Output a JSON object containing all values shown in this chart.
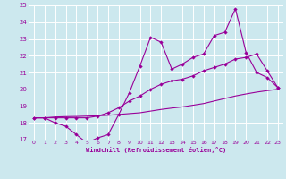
{
  "xlabel": "Windchill (Refroidissement éolien,°C)",
  "background_color": "#cce8ee",
  "grid_color": "#ffffff",
  "line_color": "#990099",
  "x_ticks": [
    0,
    1,
    2,
    3,
    4,
    5,
    6,
    7,
    8,
    9,
    10,
    11,
    12,
    13,
    14,
    15,
    16,
    17,
    18,
    19,
    20,
    21,
    22,
    23
  ],
  "xlim": [
    -0.5,
    23.5
  ],
  "ylim": [
    17,
    25
  ],
  "yticks": [
    17,
    18,
    19,
    20,
    21,
    22,
    23,
    24,
    25
  ],
  "line1_y": [
    18.3,
    18.3,
    18.0,
    17.8,
    17.3,
    16.8,
    17.1,
    17.3,
    18.5,
    19.8,
    21.4,
    23.1,
    22.8,
    21.2,
    21.5,
    21.9,
    22.1,
    23.2,
    23.4,
    24.8,
    22.2,
    21.0,
    20.7,
    20.1
  ],
  "line2_y": [
    18.3,
    18.3,
    18.3,
    18.3,
    18.3,
    18.3,
    18.4,
    18.6,
    18.9,
    19.3,
    19.6,
    20.0,
    20.3,
    20.5,
    20.6,
    20.8,
    21.1,
    21.3,
    21.5,
    21.8,
    21.9,
    22.1,
    21.1,
    20.1
  ],
  "line3_y": [
    18.3,
    18.3,
    18.35,
    18.37,
    18.38,
    18.4,
    18.42,
    18.45,
    18.5,
    18.55,
    18.6,
    18.7,
    18.8,
    18.88,
    18.95,
    19.05,
    19.15,
    19.3,
    19.45,
    19.6,
    19.72,
    19.83,
    19.92,
    20.0
  ]
}
